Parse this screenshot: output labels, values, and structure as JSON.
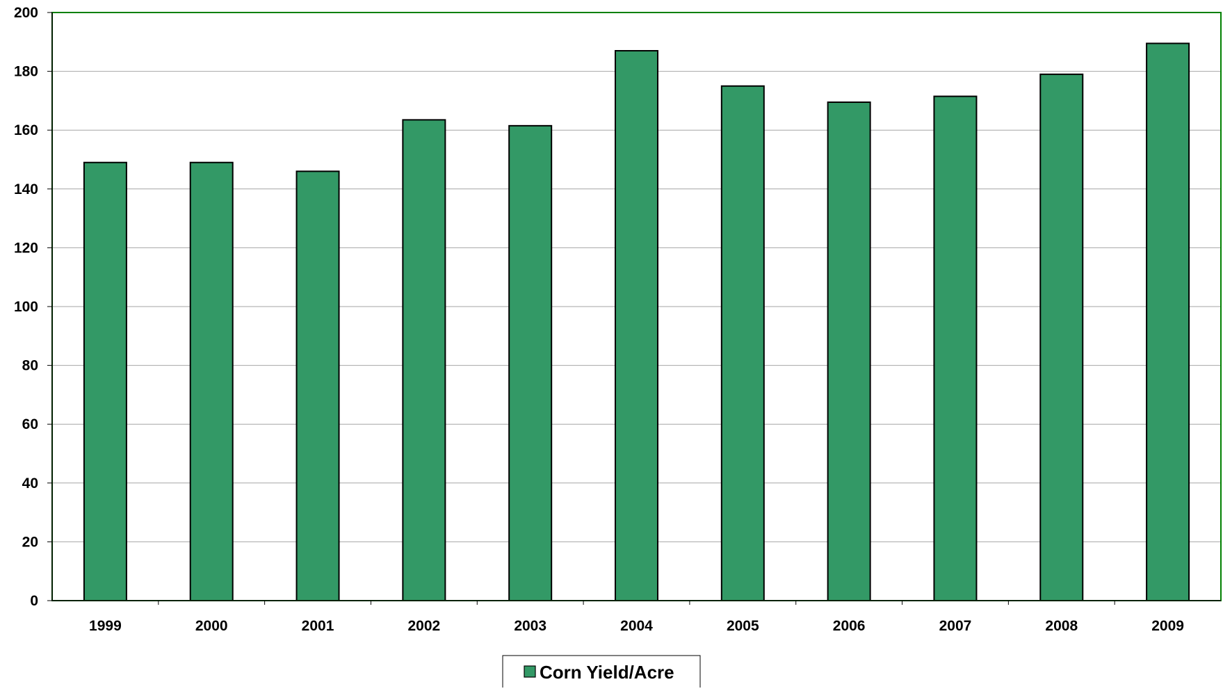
{
  "chart_data": {
    "type": "bar",
    "categories": [
      "1999",
      "2000",
      "2001",
      "2002",
      "2003",
      "2004",
      "2005",
      "2006",
      "2007",
      "2008",
      "2009"
    ],
    "series": [
      {
        "name": "Corn Yield/Acre",
        "values": [
          149,
          149,
          146,
          163.5,
          161.5,
          187,
          175,
          169.5,
          171.5,
          179,
          189.5
        ]
      }
    ],
    "ylim": [
      0,
      200
    ],
    "y_ticks": [
      0,
      20,
      40,
      60,
      80,
      100,
      120,
      140,
      160,
      180,
      200
    ],
    "grid": true,
    "legend_position": "bottom-center"
  },
  "colors": {
    "bar_fill": "#339966",
    "bar_stroke": "#000000",
    "plot_border": "#008000",
    "gridline": "#a6a6a6"
  }
}
